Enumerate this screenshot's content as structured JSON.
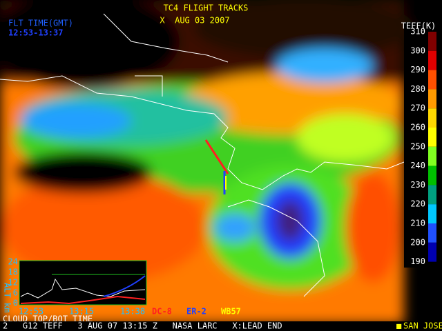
{
  "header": {
    "title": "TC4 FLIGHT TRACKS",
    "date": "X  AUG 03 2007",
    "flight_time_label": "FLT TIME(GMT)",
    "flight_time": "12:53-13:37"
  },
  "colorbar": {
    "label": "TEFF(K)",
    "ticks": [
      310,
      300,
      290,
      280,
      270,
      260,
      250,
      240,
      230,
      220,
      210,
      200,
      190
    ],
    "colors": [
      "#800000",
      "#e00000",
      "#ff5000",
      "#ff9a00",
      "#ffd800",
      "#ffff00",
      "#80ff20",
      "#00c000",
      "#00a080",
      "#00c8ff",
      "#2050ff",
      "#0000b0"
    ]
  },
  "aircraft": [
    {
      "name": "DC-8",
      "color": "#ff2020"
    },
    {
      "name": "ER-2",
      "color": "#2040ff"
    },
    {
      "name": "WB57",
      "color": "#ffff00"
    }
  ],
  "inset": {
    "y_label": "ALT km",
    "yticks": [
      "24",
      "18",
      "12",
      "6",
      "0"
    ],
    "xticks": [
      "12:53",
      "13:15",
      "13:38"
    ],
    "caption": "CLOUD TOP/BOT TIME"
  },
  "footer": {
    "info": "2   G12 TEFF   3 AUG 07 13:15 Z   NASA LARC   X:LEAD END",
    "city": "SAN JOSE"
  }
}
